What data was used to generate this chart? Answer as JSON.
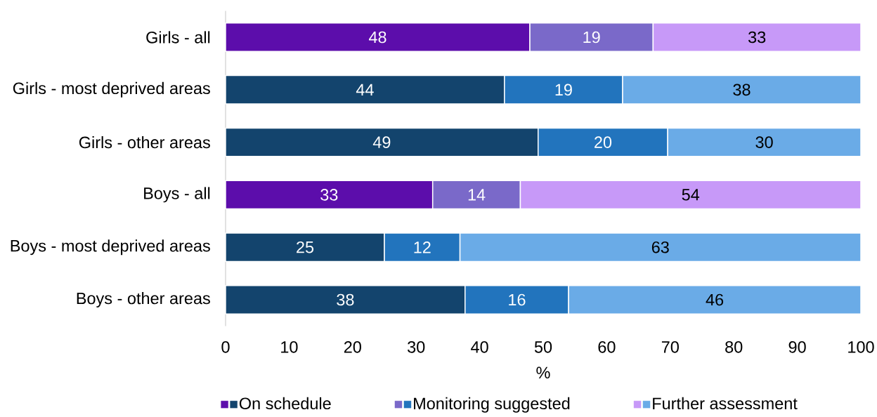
{
  "chart_data": {
    "type": "bar",
    "orientation": "horizontal",
    "stacked": true,
    "categories": [
      "Girls - all",
      "Girls - most deprived areas",
      "Girls - other areas",
      "Boys - all",
      "Boys - most deprived areas",
      "Boys - other areas"
    ],
    "series": [
      {
        "name": "On schedule",
        "colors": [
          "#5c0dab",
          "#13446d",
          "#13446d",
          "#5c0dab",
          "#13446d",
          "#13446d"
        ],
        "values": [
          47.9,
          43.9,
          49.2,
          32.6,
          25.0,
          37.7
        ],
        "value_labels": [
          "48",
          "44",
          "49",
          "33",
          "25",
          "38"
        ]
      },
      {
        "name": "Monitoring suggested",
        "colors": [
          "#7a69c9",
          "#2274bd",
          "#2274bd",
          "#7a69c9",
          "#2274bd",
          "#2274bd"
        ],
        "values": [
          19.4,
          18.6,
          20.4,
          13.8,
          11.9,
          16.3
        ],
        "value_labels": [
          "19",
          "19",
          "20",
          "14",
          "12",
          "16"
        ]
      },
      {
        "name": "Further assessment",
        "colors": [
          "#c799f8",
          "#6aabe7",
          "#6aabe7",
          "#c799f8",
          "#6aabe7",
          "#6aabe7"
        ],
        "values": [
          32.7,
          37.5,
          30.4,
          53.6,
          63.1,
          46.0
        ],
        "value_labels": [
          "33",
          "38",
          "30",
          "54",
          "63",
          "46"
        ]
      }
    ],
    "xlim": [
      0,
      100
    ],
    "xticks": [
      0,
      10,
      20,
      30,
      40,
      50,
      60,
      70,
      80,
      90,
      100
    ],
    "xlabel": "%",
    "legend": "bottom"
  }
}
